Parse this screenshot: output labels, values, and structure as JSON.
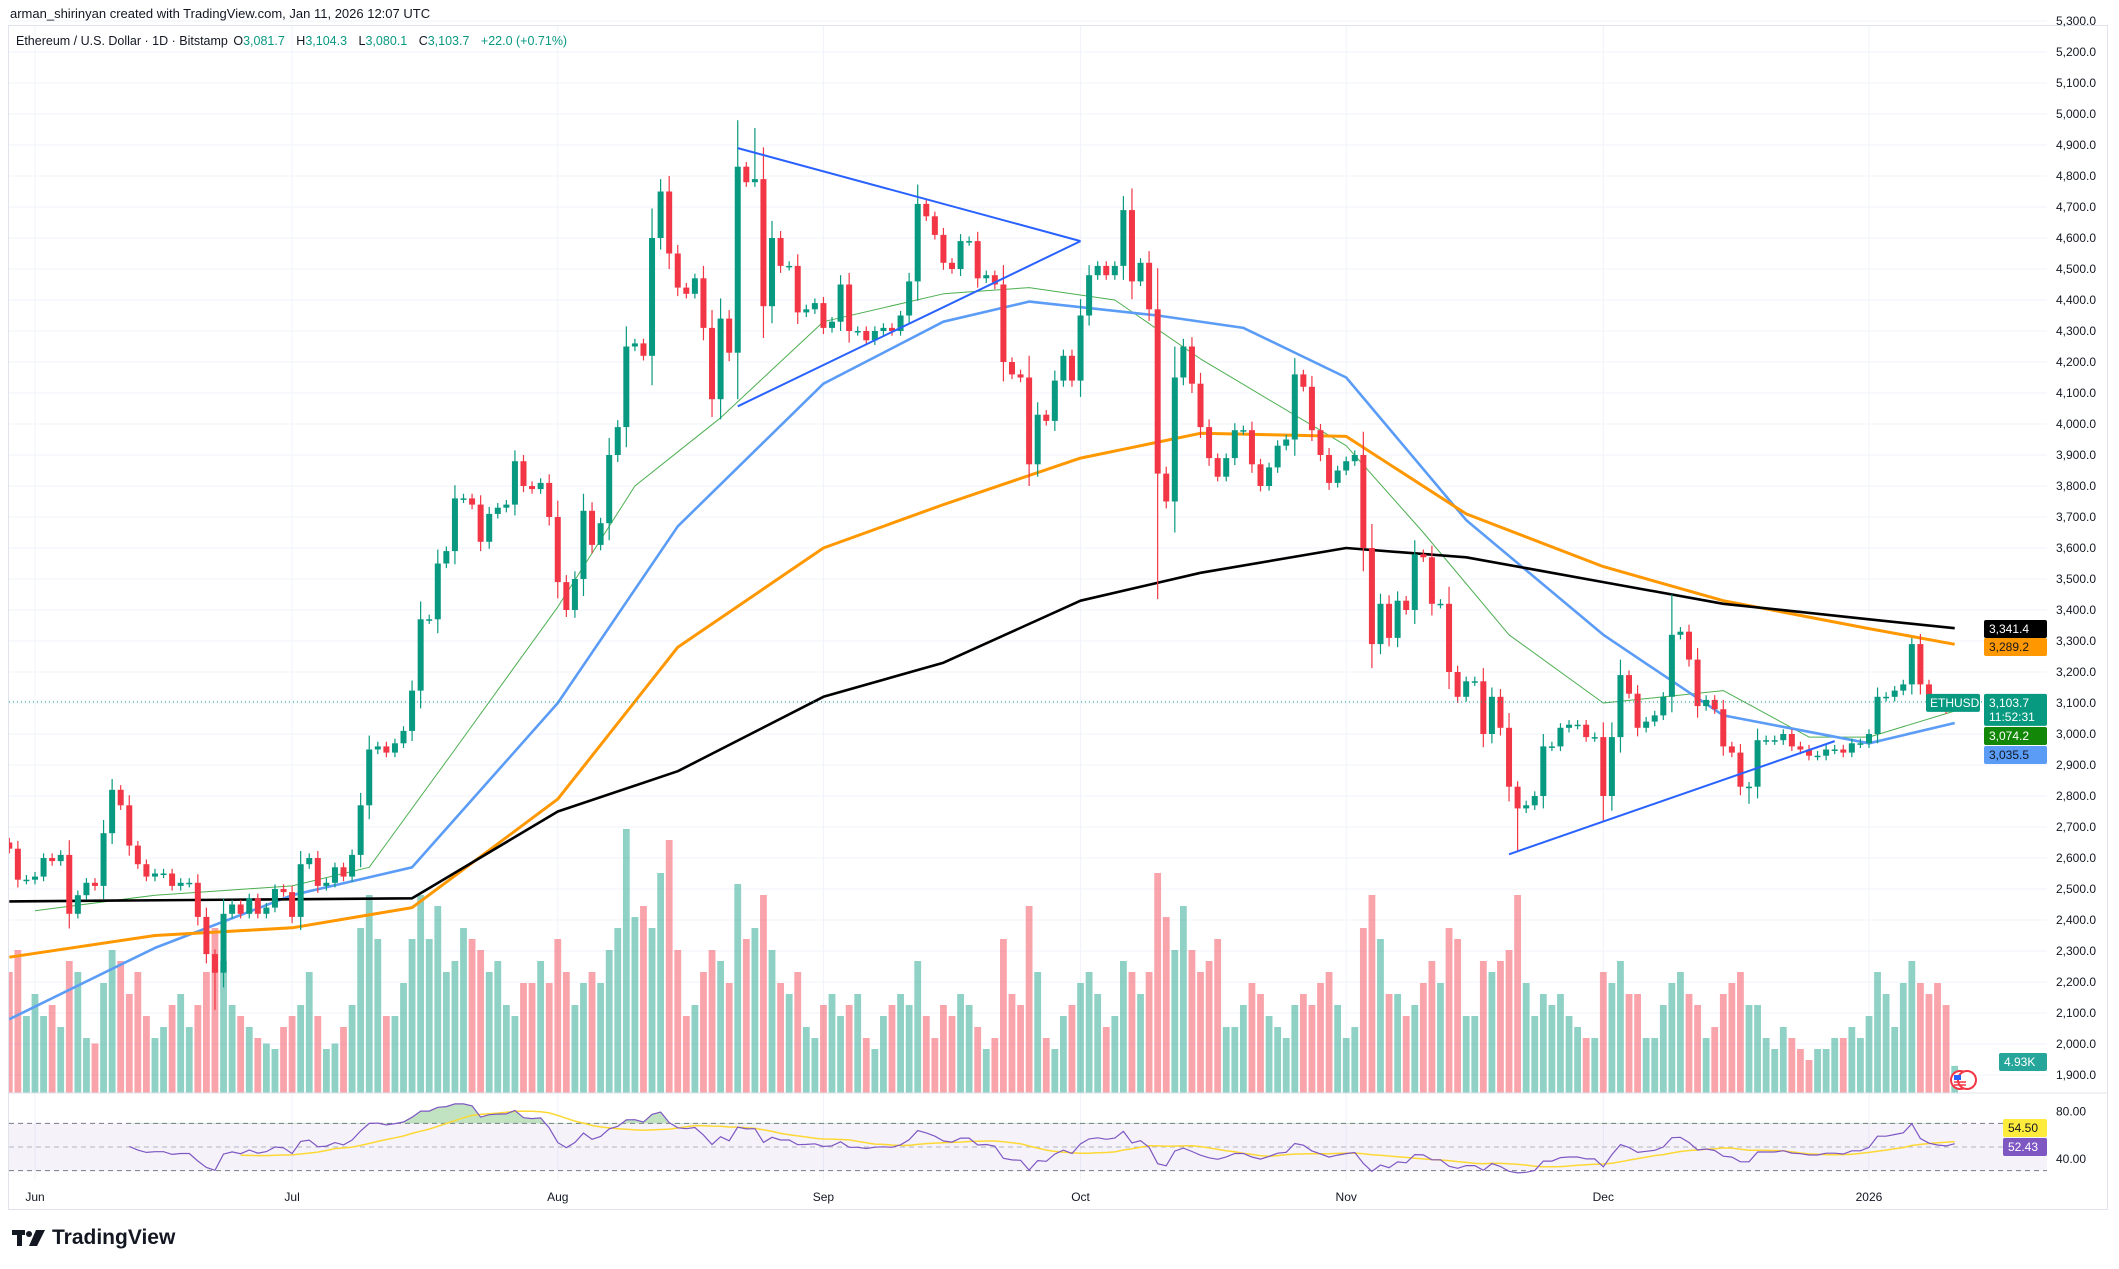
{
  "credit": "arman_shirinyan created with TradingView.com, Jan 11, 2026 12:07 UTC",
  "legend": {
    "symbol": "Ethereum / U.S. Dollar · 1D · Bitstamp",
    "o_label": "O",
    "o": "3,081.7",
    "h_label": "H",
    "h": "3,104.3",
    "l_label": "L",
    "l": "3,080.1",
    "c_label": "C",
    "c": "3,103.7",
    "change": "+22.0 (+0.71%)"
  },
  "brand": "TradingView",
  "colors": {
    "up": "#089981",
    "down": "#f23645",
    "ma20": "#4caf50",
    "ma50": "#5b9cf6",
    "ma100": "#ff9800",
    "ma200": "#000000",
    "trendline": "#2962ff",
    "rsi": "#7e57c2",
    "rsi_ma": "#fdd835"
  },
  "price_axis": {
    "labels": [
      "5,300.0",
      "5,200.0",
      "5,100.0",
      "5,000.0",
      "4,900.0",
      "4,800.0",
      "4,700.0",
      "4,600.0",
      "4,500.0",
      "4,400.0",
      "4,300.0",
      "4,200.0",
      "4,100.0",
      "4,000.0",
      "3,900.0",
      "3,800.0",
      "3,700.0",
      "3,600.0",
      "3,500.0",
      "3,400.0",
      "3,300.0",
      "3,200.0",
      "3,100.0",
      "3,000.0",
      "2,900.0",
      "2,800.0",
      "2,700.0",
      "2,600.0",
      "2,500.0",
      "2,400.0",
      "2,300.0",
      "2,200.0",
      "2,100.0",
      "2,000.0",
      "1,900.0"
    ],
    "values": [
      5300,
      5200,
      5100,
      5000,
      4900,
      4800,
      4700,
      4600,
      4500,
      4400,
      4300,
      4200,
      4100,
      4000,
      3900,
      3800,
      3700,
      3600,
      3500,
      3400,
      3300,
      3200,
      3100,
      3000,
      2900,
      2800,
      2700,
      2600,
      2500,
      2400,
      2300,
      2200,
      2100,
      2000,
      1900
    ]
  },
  "markers": {
    "ma200": {
      "text": "3,341.4",
      "value": 3341.4
    },
    "ma100": {
      "text": "3,289.2",
      "value": 3289.2
    },
    "symbol": "ETHUSD",
    "last_price": {
      "text": "3,103.7",
      "value": 3103.7
    },
    "countdown": "11:52:31",
    "ma20": {
      "text": "3,074.2",
      "value": 3074.2
    },
    "ma50": {
      "text": "3,035.5",
      "value": 3035.5
    },
    "volume": "4.93K"
  },
  "rsi_axis": {
    "labels": [
      "80.00",
      "40.00"
    ],
    "rsi_value": "52.43",
    "rsi_ma_value": "54.50",
    "upper_band": 70,
    "middle": 50,
    "lower_band": 30
  },
  "time_axis": [
    {
      "label": "Jun",
      "date": "2025-06-01"
    },
    {
      "label": "Jul",
      "date": "2025-07-01"
    },
    {
      "label": "Aug",
      "date": "2025-08-01"
    },
    {
      "label": "Sep",
      "date": "2025-09-01"
    },
    {
      "label": "Oct",
      "date": "2025-10-01"
    },
    {
      "label": "Nov",
      "date": "2025-11-01"
    },
    {
      "label": "Dec",
      "date": "2025-12-01"
    },
    {
      "label": "2026",
      "date": "2026-01-01"
    }
  ],
  "chart_data": {
    "type": "candlestick",
    "title": "Ethereum / U.S. Dollar · 1D · Bitstamp",
    "first_open": 2650,
    "months": [
      {
        "month": "2025-05",
        "start_day": 29,
        "close": [
          2630,
          2530,
          2530
        ],
        "volume_k": [
          22,
          26,
          14
        ]
      },
      {
        "month": "2025-06",
        "start_day": 1,
        "close": [
          2540,
          2600,
          2590,
          2610,
          2420,
          2480,
          2520,
          2510,
          2680,
          2820,
          2770,
          2640,
          2580,
          2540,
          2550,
          2550,
          2510,
          2520,
          2520,
          2410,
          2290,
          2230,
          2420,
          2450,
          2420,
          2470,
          2420,
          2440,
          2500,
          2490
        ],
        "volume_k": [
          18,
          14,
          16,
          12,
          24,
          22,
          10,
          9,
          20,
          26,
          24,
          18,
          22,
          14,
          10,
          12,
          16,
          18,
          12,
          16,
          22,
          30,
          24,
          16,
          14,
          12,
          10,
          9,
          8,
          12
        ]
      },
      {
        "month": "2025-07",
        "start_day": 1,
        "close": [
          2410,
          2580,
          2600,
          2510,
          2520,
          2570,
          2540,
          2610,
          2770,
          2950,
          2960,
          2940,
          2970,
          3010,
          3140,
          3370,
          3370,
          3550,
          3590,
          3760,
          3760,
          3740,
          3620,
          3710,
          3730,
          3740,
          3880,
          3800,
          3790,
          3810,
          3700
        ],
        "volume_k": [
          14,
          16,
          22,
          14,
          8,
          9,
          12,
          16,
          30,
          36,
          28,
          14,
          14,
          20,
          28,
          36,
          28,
          34,
          22,
          24,
          30,
          28,
          26,
          22,
          24,
          16,
          14,
          20,
          20,
          24,
          20
        ]
      },
      {
        "month": "2025-08",
        "start_day": 1,
        "close": [
          3490,
          3400,
          3500,
          3720,
          3610,
          3680,
          3900,
          3990,
          4250,
          4260,
          4220,
          4600,
          4750,
          4550,
          4440,
          4420,
          4470,
          4310,
          4080,
          4340,
          4230,
          4830,
          4780,
          4790,
          4380,
          4600,
          4510,
          4510,
          4360,
          4370,
          4390
        ],
        "volume_k": [
          28,
          22,
          16,
          20,
          22,
          20,
          26,
          30,
          48,
          32,
          34,
          30,
          40,
          46,
          26,
          14,
          16,
          22,
          26,
          24,
          20,
          38,
          28,
          30,
          36,
          26,
          20,
          18,
          22,
          12,
          10
        ]
      },
      {
        "month": "2025-09",
        "start_day": 1,
        "close": [
          4310,
          4330,
          4450,
          4300,
          4300,
          4270,
          4300,
          4310,
          4300,
          4350,
          4460,
          4710,
          4670,
          4610,
          4520,
          4500,
          4590,
          4590,
          4470,
          4480,
          4450,
          4200,
          4160,
          4150,
          3870,
          4030,
          4010,
          4140,
          4220,
          4140
        ],
        "volume_k": [
          16,
          18,
          14,
          16,
          18,
          10,
          8,
          14,
          16,
          18,
          16,
          24,
          14,
          10,
          16,
          14,
          18,
          16,
          12,
          8,
          10,
          28,
          18,
          16,
          34,
          22,
          10,
          8,
          14,
          16
        ]
      },
      {
        "month": "2025-10",
        "start_day": 1,
        "close": [
          4350,
          4480,
          4510,
          4480,
          4510,
          4690,
          4460,
          4520,
          4370,
          3840,
          3750,
          4150,
          4250,
          4130,
          3990,
          3890,
          3830,
          3890,
          3980,
          3980,
          3870,
          3800,
          3860,
          3930,
          3950,
          4160,
          4120,
          3980,
          3900,
          3810,
          3850
        ],
        "volume_k": [
          20,
          22,
          18,
          12,
          14,
          24,
          22,
          18,
          22,
          40,
          32,
          26,
          34,
          26,
          22,
          24,
          28,
          12,
          12,
          16,
          20,
          18,
          14,
          12,
          10,
          16,
          18,
          16,
          20,
          22,
          16
        ]
      },
      {
        "month": "2025-11",
        "start_day": 1,
        "close": [
          3880,
          3900,
          3600,
          3290,
          3420,
          3310,
          3430,
          3400,
          3580,
          3570,
          3420,
          3420,
          3200,
          3120,
          3170,
          3170,
          3000,
          3120,
          3020,
          2830,
          2760,
          2770,
          2800,
          2960,
          2960,
          3020,
          3030,
          3030,
          2990,
          2990
        ],
        "volume_k": [
          10,
          12,
          30,
          36,
          28,
          18,
          18,
          14,
          16,
          20,
          24,
          20,
          30,
          28,
          14,
          14,
          24,
          22,
          24,
          26,
          36,
          20,
          14,
          18,
          16,
          18,
          14,
          12,
          10,
          10
        ]
      },
      {
        "month": "2025-12",
        "start_day": 1,
        "close": [
          2800,
          2990,
          3190,
          3130,
          3020,
          3040,
          3060,
          3120,
          3320,
          3330,
          3240,
          3090,
          3110,
          3080,
          2960,
          2940,
          2830,
          2830,
          2980,
          2980,
          2980,
          3000,
          2960,
          2950,
          2930,
          2930,
          2950,
          2950,
          2940,
          2970,
          2970
        ],
        "volume_k": [
          22,
          20,
          24,
          18,
          18,
          10,
          10,
          16,
          20,
          22,
          18,
          16,
          10,
          12,
          18,
          20,
          22,
          16,
          16,
          10,
          8,
          12,
          10,
          8,
          6,
          8,
          8,
          10,
          10,
          12,
          10
        ]
      },
      {
        "month": "2026-01",
        "start_day": 1,
        "close": [
          3000,
          3120,
          3120,
          3140,
          3160,
          3290,
          3160,
          3110,
          3090,
          3080,
          3103.7
        ],
        "volume_k": [
          14,
          22,
          18,
          12,
          20,
          24,
          20,
          18,
          20,
          16,
          4.93
        ]
      }
    ],
    "wick_extremes": [
      {
        "date": "2025-06-22",
        "low": 2110
      },
      {
        "date": "2025-08-13",
        "high": 4790
      },
      {
        "date": "2025-08-24",
        "high": 4955
      },
      {
        "date": "2025-10-07",
        "high": 4760
      },
      {
        "date": "2025-10-10",
        "low": 3435
      },
      {
        "date": "2025-11-21",
        "low": 2620
      },
      {
        "date": "2025-12-01",
        "low": 2720
      },
      {
        "date": "2025-12-09",
        "high": 3450
      },
      {
        "date": "2025-12-18",
        "low": 2775
      },
      {
        "date": "2026-01-06",
        "high": 3310
      },
      {
        "date": "2026-01-11",
        "high": 3104.3,
        "low": 3080.1
      }
    ],
    "moving_averages": [
      {
        "key": "ma20",
        "points": [
          [
            "2025-06-01",
            2430
          ],
          [
            "2025-06-15",
            2480
          ],
          [
            "2025-07-01",
            2510
          ],
          [
            "2025-07-10",
            2570
          ],
          [
            "2025-07-20",
            2950
          ],
          [
            "2025-08-01",
            3410
          ],
          [
            "2025-08-10",
            3800
          ],
          [
            "2025-08-20",
            4020
          ],
          [
            "2025-09-01",
            4330
          ],
          [
            "2025-09-15",
            4420
          ],
          [
            "2025-09-25",
            4440
          ],
          [
            "2025-10-05",
            4400
          ],
          [
            "2025-10-15",
            4210
          ],
          [
            "2025-11-01",
            3930
          ],
          [
            "2025-11-10",
            3650
          ],
          [
            "2025-11-20",
            3320
          ],
          [
            "2025-12-01",
            3100
          ],
          [
            "2025-12-15",
            3140
          ],
          [
            "2025-12-25",
            2990
          ],
          [
            "2026-01-01",
            2990
          ],
          [
            "2026-01-11",
            3074.2
          ]
        ]
      },
      {
        "key": "ma50",
        "points": [
          [
            "2025-05-29",
            2080
          ],
          [
            "2025-06-15",
            2310
          ],
          [
            "2025-07-01",
            2480
          ],
          [
            "2025-07-15",
            2570
          ],
          [
            "2025-08-01",
            3100
          ],
          [
            "2025-08-15",
            3670
          ],
          [
            "2025-09-01",
            4130
          ],
          [
            "2025-09-15",
            4330
          ],
          [
            "2025-09-25",
            4395
          ],
          [
            "2025-10-10",
            4350
          ],
          [
            "2025-10-20",
            4310
          ],
          [
            "2025-11-01",
            4150
          ],
          [
            "2025-11-15",
            3690
          ],
          [
            "2025-12-01",
            3320
          ],
          [
            "2025-12-15",
            3060
          ],
          [
            "2026-01-01",
            2970
          ],
          [
            "2026-01-11",
            3035.5
          ]
        ]
      },
      {
        "key": "ma100",
        "points": [
          [
            "2025-05-29",
            2280
          ],
          [
            "2025-06-15",
            2350
          ],
          [
            "2025-07-01",
            2375
          ],
          [
            "2025-07-15",
            2440
          ],
          [
            "2025-08-01",
            2790
          ],
          [
            "2025-08-15",
            3280
          ],
          [
            "2025-09-01",
            3600
          ],
          [
            "2025-09-15",
            3740
          ],
          [
            "2025-10-01",
            3890
          ],
          [
            "2025-10-15",
            3970
          ],
          [
            "2025-11-01",
            3960
          ],
          [
            "2025-11-15",
            3710
          ],
          [
            "2025-12-01",
            3540
          ],
          [
            "2025-12-15",
            3430
          ],
          [
            "2026-01-01",
            3340
          ],
          [
            "2026-01-11",
            3289.2
          ]
        ]
      },
      {
        "key": "ma200",
        "points": [
          [
            "2025-05-29",
            2460
          ],
          [
            "2025-07-15",
            2470
          ],
          [
            "2025-08-01",
            2750
          ],
          [
            "2025-08-15",
            2880
          ],
          [
            "2025-09-01",
            3120
          ],
          [
            "2025-09-15",
            3230
          ],
          [
            "2025-10-01",
            3430
          ],
          [
            "2025-10-15",
            3520
          ],
          [
            "2025-11-01",
            3600
          ],
          [
            "2025-11-15",
            3570
          ],
          [
            "2025-12-01",
            3490
          ],
          [
            "2025-12-15",
            3420
          ],
          [
            "2026-01-01",
            3370
          ],
          [
            "2026-01-11",
            3341.4
          ]
        ]
      }
    ],
    "trendlines": [
      [
        [
          "2025-08-22",
          4890
        ],
        [
          "2025-10-01",
          4590
        ]
      ],
      [
        [
          "2025-08-22",
          4057
        ],
        [
          "2025-10-01",
          4590
        ]
      ],
      [
        [
          "2025-11-20",
          2612
        ],
        [
          "2025-12-28",
          2977
        ]
      ]
    ],
    "grid": true
  }
}
